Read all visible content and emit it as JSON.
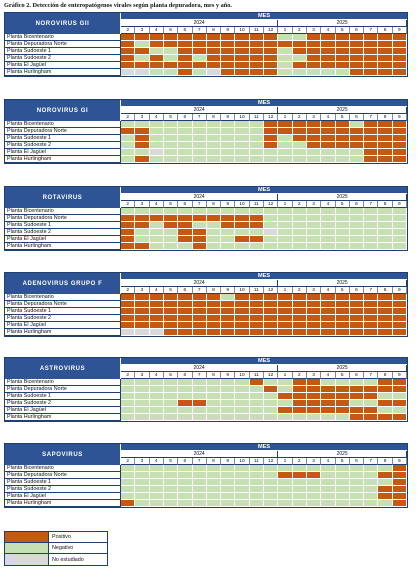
{
  "title": "Gráfico 2. Detección de enteropatógenos virales según planta depuradora, mes y año.",
  "mes_label": "MES",
  "years": [
    "2024",
    "2025"
  ],
  "months": [
    "2",
    "3",
    "4",
    "5",
    "6",
    "7",
    "8",
    "9",
    "10",
    "11",
    "12",
    "1",
    "2",
    "3",
    "4",
    "5",
    "6",
    "7",
    "8",
    "9"
  ],
  "plants": [
    "Planta Bicentenario",
    "Planta Depuradora Norte",
    "Planta Sudoeste 1",
    "Planta Sudoeste 2",
    "Planta El Jagüel",
    "Planta Hurlingham"
  ],
  "colors": {
    "positive": "#c65911",
    "negative": "#c6e0b4",
    "not_studied": "#d9d9d9",
    "header": "#2f5496"
  },
  "legend": [
    {
      "key": "P",
      "label": "Positivo"
    },
    {
      "key": "N",
      "label": "Negativo"
    },
    {
      "key": "E",
      "label": "No estudiado"
    }
  ],
  "blocks": [
    {
      "virus": "NOROVIRUS GII",
      "rows": [
        "PPPPPPPPPPPNNPPPPPPP",
        "PNPPPPPPPPPPPPPPPPPP",
        "PPNNPPPPPPPNPPPPPPPP",
        "PNPNPNPPPPPNNPPPPPPP",
        "PPPPPPPPPPPNPPPPPPPP",
        "EENNPNEPPPPNNNNNPPPP"
      ]
    },
    {
      "virus": "NOROVIRUS GI",
      "rows": [
        "NNNNNNNNNNPPPPPPNPPP",
        "PPNNNNNNNNPPPPPPPPPP",
        "NPNNNNNNNNPNPPPPPPPP",
        "NPNNNNNNNNPNNPPPPPPP",
        "NNENNNNNNNNNNNNNNPPP",
        "NPNNNNNNNNNNNNNNNPPP"
      ]
    },
    {
      "virus": "ROTAVIRUS",
      "rows": [
        "NNNNNNNNNNNNNNNNNNNN",
        "PPPPPPPPPPNNNNNNNNNN",
        "PPNPPNNPPPNNNNNNNNNN",
        "PNNNPPNNNNENNNNNNNNN",
        "PNNNPPNNPPNNNNNNNNNN",
        "PPNNNPNNNNNNNNNNNNNN"
      ]
    },
    {
      "virus": "ADENOVIRUS GRUPO F",
      "rows": [
        "PPPPPPPNPPPPPPPPPPPP",
        "PPPPPPPPPPPPPPPPPPPP",
        "PPPPPPPPPPPPPPPPPPPP",
        "PPPPPPPPPPPPPPPPPPPP",
        "PPPPPPPPPPPPPPPPPPPP",
        "EEEPPPPPPPPPPPPPPPPP"
      ]
    },
    {
      "virus": "ASTROVIRUS",
      "rows": [
        "NNNNNNNNNPNNPPNNNNPP",
        "NNNNNNNNNNPNPPPPPPPP",
        "NNNNNNNNNNNPPPPPPPNN",
        "NNNNPPNNNNNNPPPPNNPP",
        "NNNNNNNNNNNPPPPPPPNN",
        "NNNNNNNNNNNNNNNNPPPP"
      ]
    },
    {
      "virus": "SAPOVIRUS",
      "rows": [
        "NNNNNNNNNNNNNNNNNNNP",
        "NNNNNNNNNNNPPPNNNNPP",
        "NNNNNNNNNNNNNNNNNNNP",
        "NNNNNNNNNNNNNNNNNNPP",
        "NNNNNNNNNNNNNNNNNNPP",
        "PNNNNNNNNNNNNNNNNNNP"
      ]
    }
  ]
}
